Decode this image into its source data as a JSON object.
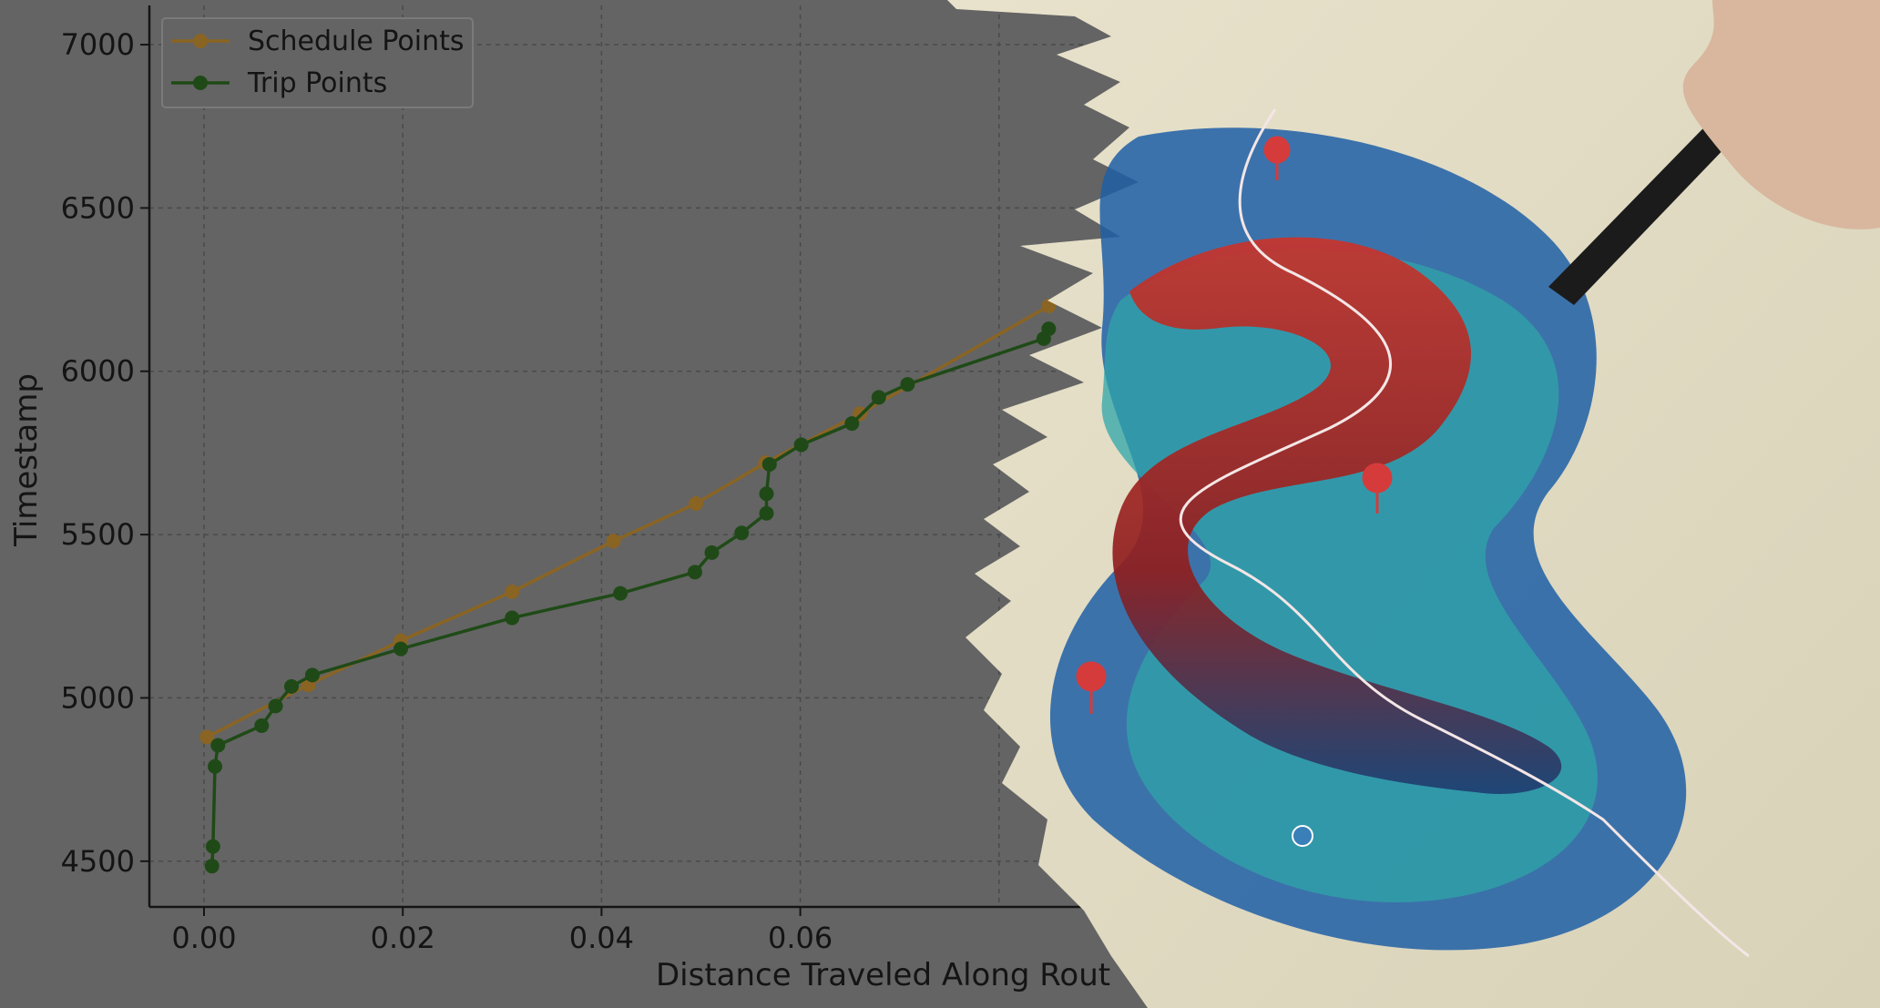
{
  "colors": {
    "background": "#646464",
    "grid": "#4a4a4a",
    "axis": "#151515",
    "text": "#141414",
    "schedule": "#8a6423",
    "trip": "#1f4a17"
  },
  "chart_data": {
    "type": "line",
    "title": "",
    "xlabel": "Distance Traveled Along Rout",
    "ylabel": "Timestamp",
    "xlim": [
      -0.0055,
      0.1
    ],
    "ylim": [
      4360,
      7120
    ],
    "x_ticks": [
      0.0,
      0.02,
      0.04,
      0.06
    ],
    "x_tick_labels": [
      "0.00",
      "0.02",
      "0.04",
      "0.06"
    ],
    "y_ticks": [
      4500,
      5000,
      5500,
      6000,
      6500,
      7000
    ],
    "y_tick_labels": [
      "4500",
      "5000",
      "5500",
      "6000",
      "6500",
      "7000"
    ],
    "grid": true,
    "legend_position": "top-left",
    "series": [
      {
        "name": "Schedule Points",
        "color": "#8a6423",
        "points": [
          [
            0.0003,
            4880
          ],
          [
            0.0105,
            5040
          ],
          [
            0.0198,
            5175
          ],
          [
            0.031,
            5325
          ],
          [
            0.0412,
            5480
          ],
          [
            0.0495,
            5595
          ],
          [
            0.0565,
            5720
          ],
          [
            0.066,
            5870
          ],
          [
            0.085,
            6200
          ]
        ]
      },
      {
        "name": "Trip Points",
        "color": "#1f4a17",
        "points": [
          [
            0.0008,
            4485
          ],
          [
            0.0009,
            4545
          ],
          [
            0.0011,
            4790
          ],
          [
            0.0014,
            4855
          ],
          [
            0.0058,
            4915
          ],
          [
            0.0072,
            4975
          ],
          [
            0.0088,
            5035
          ],
          [
            0.0109,
            5070
          ],
          [
            0.0198,
            5150
          ],
          [
            0.031,
            5245
          ],
          [
            0.0419,
            5320
          ],
          [
            0.0494,
            5385
          ],
          [
            0.0511,
            5445
          ],
          [
            0.0541,
            5505
          ],
          [
            0.0566,
            5565
          ],
          [
            0.0566,
            5625
          ],
          [
            0.0569,
            5715
          ],
          [
            0.0601,
            5775
          ],
          [
            0.0652,
            5840
          ],
          [
            0.0679,
            5920
          ],
          [
            0.0708,
            5960
          ],
          [
            0.0845,
            6100
          ],
          [
            0.085,
            6130
          ]
        ]
      }
    ]
  }
}
